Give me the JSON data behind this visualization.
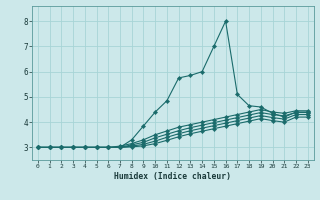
{
  "xlabel": "Humidex (Indice chaleur)",
  "xlim": [
    -0.5,
    23.5
  ],
  "ylim": [
    2.5,
    8.6
  ],
  "yticks": [
    3,
    4,
    5,
    6,
    7,
    8
  ],
  "xticks": [
    0,
    1,
    2,
    3,
    4,
    5,
    6,
    7,
    8,
    9,
    10,
    11,
    12,
    13,
    14,
    15,
    16,
    17,
    18,
    19,
    20,
    21,
    22,
    23
  ],
  "bg_color": "#cce8ea",
  "grid_color": "#a8d4d6",
  "line_color": "#1a6b6b",
  "lines": [
    {
      "x": [
        0,
        1,
        2,
        3,
        4,
        5,
        6,
        7,
        8,
        9,
        10,
        11,
        12,
        13,
        14,
        15,
        16,
        17,
        18,
        19,
        20,
        21,
        22,
        23
      ],
      "y": [
        3.0,
        3.0,
        3.0,
        3.0,
        3.0,
        3.0,
        3.0,
        3.0,
        3.3,
        3.85,
        4.4,
        4.85,
        5.75,
        5.85,
        6.0,
        7.0,
        8.0,
        5.1,
        4.65,
        4.6,
        4.35,
        4.2,
        4.4,
        4.4
      ]
    },
    {
      "x": [
        0,
        1,
        2,
        3,
        4,
        5,
        6,
        7,
        8,
        9,
        10,
        11,
        12,
        13,
        14,
        15,
        16,
        17,
        18,
        19,
        20,
        21,
        22,
        23
      ],
      "y": [
        3.0,
        3.0,
        3.0,
        3.0,
        3.0,
        3.0,
        3.0,
        3.05,
        3.15,
        3.3,
        3.5,
        3.65,
        3.8,
        3.9,
        4.0,
        4.1,
        4.2,
        4.3,
        4.4,
        4.5,
        4.4,
        4.35,
        4.45,
        4.45
      ]
    },
    {
      "x": [
        0,
        1,
        2,
        3,
        4,
        5,
        6,
        7,
        8,
        9,
        10,
        11,
        12,
        13,
        14,
        15,
        16,
        17,
        18,
        19,
        20,
        21,
        22,
        23
      ],
      "y": [
        3.0,
        3.0,
        3.0,
        3.0,
        3.0,
        3.0,
        3.0,
        3.0,
        3.1,
        3.2,
        3.38,
        3.52,
        3.66,
        3.78,
        3.88,
        3.98,
        4.08,
        4.18,
        4.28,
        4.38,
        4.3,
        4.25,
        4.38,
        4.38
      ]
    },
    {
      "x": [
        0,
        1,
        2,
        3,
        4,
        5,
        6,
        7,
        8,
        9,
        10,
        11,
        12,
        13,
        14,
        15,
        16,
        17,
        18,
        19,
        20,
        21,
        22,
        23
      ],
      "y": [
        3.0,
        3.0,
        3.0,
        3.0,
        3.0,
        3.0,
        3.0,
        3.0,
        3.05,
        3.12,
        3.25,
        3.4,
        3.54,
        3.66,
        3.76,
        3.86,
        3.96,
        4.06,
        4.16,
        4.26,
        4.18,
        4.12,
        4.3,
        4.3
      ]
    },
    {
      "x": [
        0,
        1,
        2,
        3,
        4,
        5,
        6,
        7,
        8,
        9,
        10,
        11,
        12,
        13,
        14,
        15,
        16,
        17,
        18,
        19,
        20,
        21,
        22,
        23
      ],
      "y": [
        3.0,
        3.0,
        3.0,
        3.0,
        3.0,
        3.0,
        3.0,
        3.0,
        3.02,
        3.06,
        3.15,
        3.28,
        3.42,
        3.54,
        3.64,
        3.74,
        3.84,
        3.94,
        4.04,
        4.14,
        4.06,
        4.0,
        4.2,
        4.2
      ]
    }
  ]
}
